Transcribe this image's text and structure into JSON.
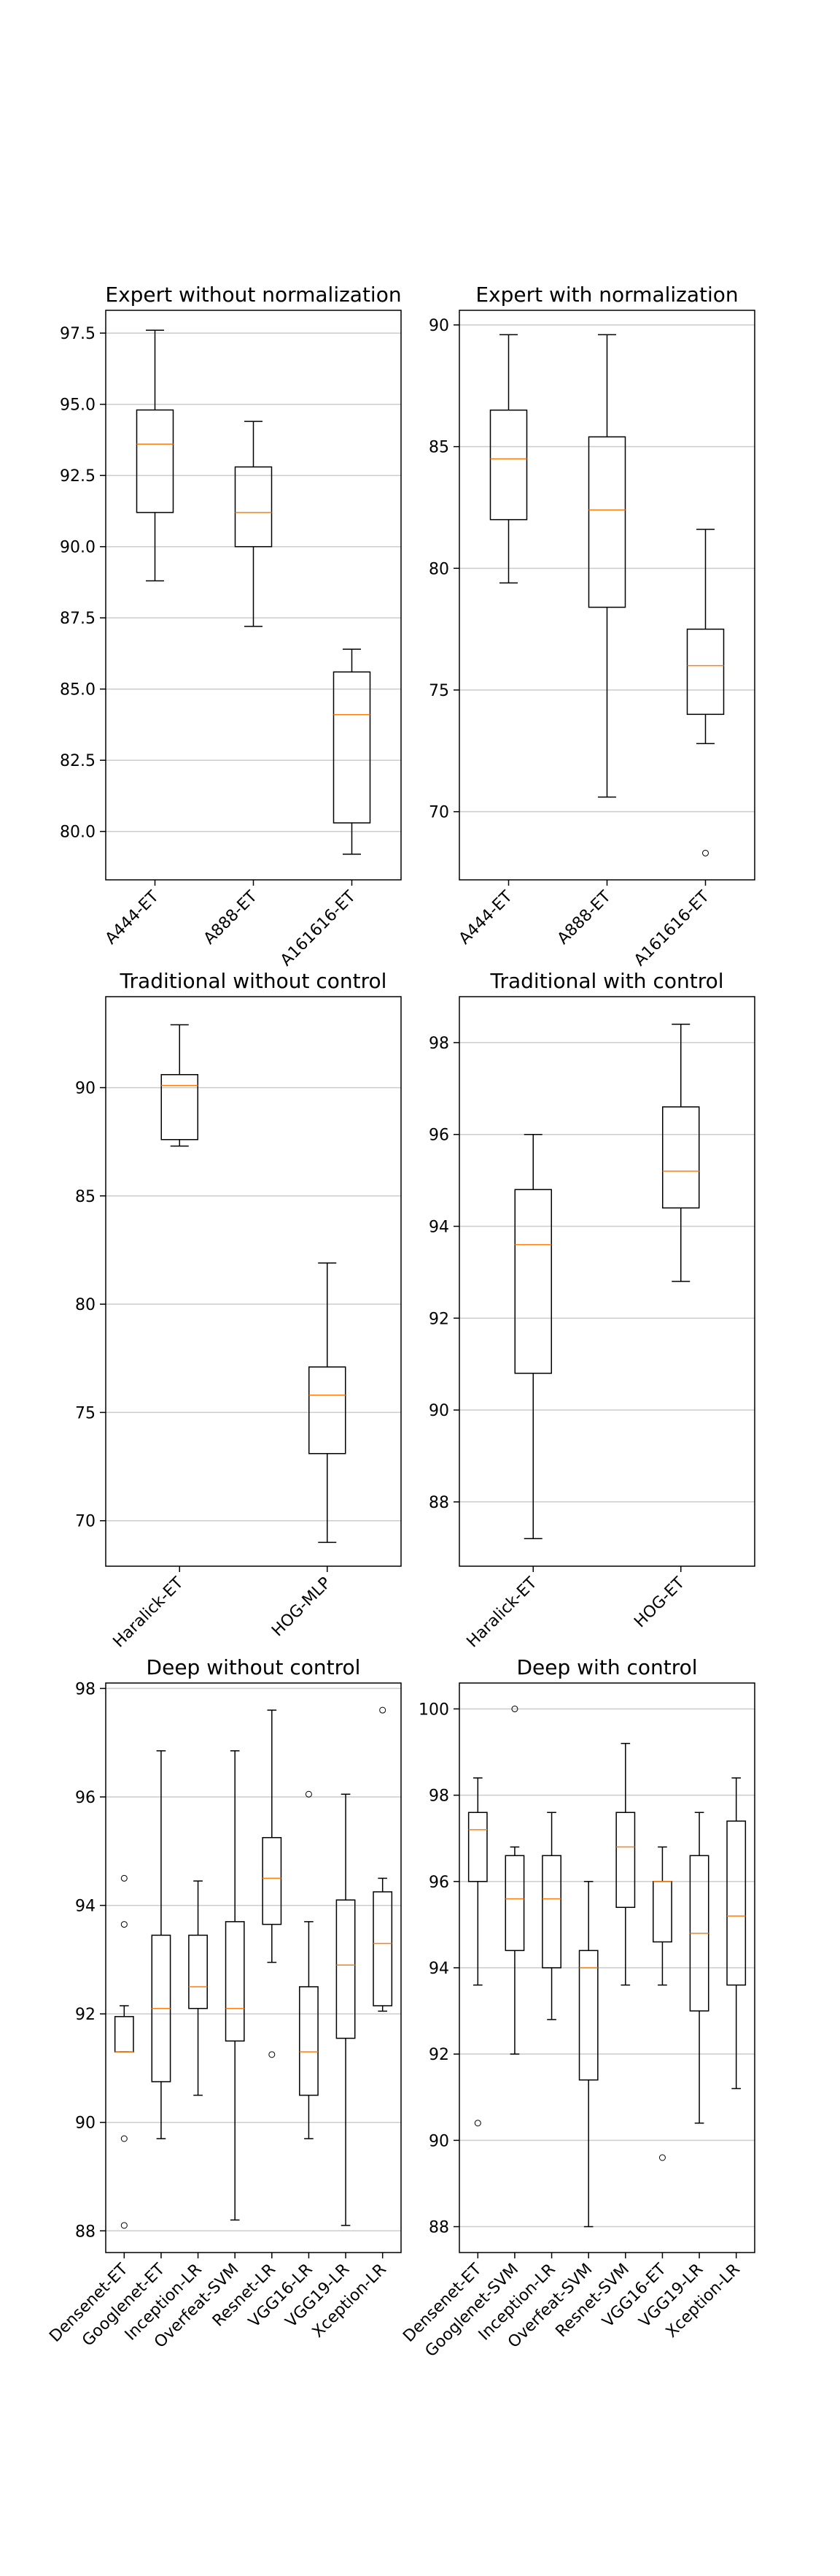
{
  "chart_data": [
    {
      "type": "box",
      "title": "Expert without normalization",
      "categories": [
        "A444-ET",
        "A888-ET",
        "A161616-ET"
      ],
      "ylim": [
        78.3,
        98.3
      ],
      "yticks": [
        "80.0",
        "82.5",
        "85.0",
        "87.5",
        "90.0",
        "92.5",
        "95.0",
        "97.5"
      ],
      "grid": "horizontal",
      "boxes": [
        {
          "whislo": 88.8,
          "q1": 91.2,
          "med": 93.6,
          "q3": 94.8,
          "whishi": 97.6,
          "fliers": []
        },
        {
          "whislo": 87.2,
          "q1": 90.0,
          "med": 91.2,
          "q3": 92.8,
          "whishi": 94.4,
          "fliers": []
        },
        {
          "whislo": 79.2,
          "q1": 80.3,
          "med": 84.1,
          "q3": 85.6,
          "whishi": 86.4,
          "fliers": []
        }
      ]
    },
    {
      "type": "box",
      "title": "Expert with normalization",
      "categories": [
        "A444-ET",
        "A888-ET",
        "A161616-ET"
      ],
      "ylim": [
        67.2,
        90.6
      ],
      "yticks": [
        "70",
        "75",
        "80",
        "85",
        "90"
      ],
      "grid": "horizontal",
      "boxes": [
        {
          "whislo": 79.4,
          "q1": 82.0,
          "med": 84.5,
          "q3": 86.5,
          "whishi": 89.6,
          "fliers": []
        },
        {
          "whislo": 70.6,
          "q1": 78.4,
          "med": 82.4,
          "q3": 85.4,
          "whishi": 89.6,
          "fliers": []
        },
        {
          "whislo": 72.8,
          "q1": 74.0,
          "med": 76.0,
          "q3": 77.5,
          "whishi": 81.6,
          "fliers": [
            68.3
          ]
        }
      ]
    },
    {
      "type": "box",
      "title": "Traditional without control",
      "categories": [
        "Haralick-ET",
        "HOG-MLP"
      ],
      "ylim": [
        67.9,
        94.2
      ],
      "yticks": [
        "70",
        "75",
        "80",
        "85",
        "90"
      ],
      "grid": "horizontal",
      "boxes": [
        {
          "whislo": 87.3,
          "q1": 87.6,
          "med": 90.1,
          "q3": 90.6,
          "whishi": 92.9,
          "fliers": []
        },
        {
          "whislo": 69.0,
          "q1": 73.1,
          "med": 75.8,
          "q3": 77.1,
          "whishi": 81.9,
          "fliers": []
        }
      ]
    },
    {
      "type": "box",
      "title": "Traditional with control",
      "categories": [
        "Haralick-ET",
        "HOG-ET"
      ],
      "ylim": [
        86.6,
        99.0
      ],
      "yticks": [
        "88",
        "90",
        "92",
        "94",
        "96",
        "98"
      ],
      "grid": "horizontal",
      "boxes": [
        {
          "whislo": 87.2,
          "q1": 90.8,
          "med": 93.6,
          "q3": 94.8,
          "whishi": 96.0,
          "fliers": []
        },
        {
          "whislo": 92.8,
          "q1": 94.4,
          "med": 95.2,
          "q3": 96.6,
          "whishi": 98.4,
          "fliers": []
        }
      ]
    },
    {
      "type": "box",
      "title": "Deep without control",
      "categories": [
        "Densenet-ET",
        "Googlenet-ET",
        "Inception-LR",
        "Overfeat-SVM",
        "Resnet-LR",
        "VGG16-LR",
        "VGG19-LR",
        "Xception-LR"
      ],
      "ylim": [
        87.6,
        98.1
      ],
      "yticks": [
        "88",
        "90",
        "92",
        "94",
        "96",
        "98"
      ],
      "grid": "horizontal",
      "boxes": [
        {
          "whislo": 91.3,
          "q1": 91.3,
          "med": 91.3,
          "q3": 91.95,
          "whishi": 92.15,
          "fliers": [
            94.5,
            93.65,
            89.7,
            88.1
          ]
        },
        {
          "whislo": 89.7,
          "q1": 90.75,
          "med": 92.1,
          "q3": 93.45,
          "whishi": 96.85,
          "fliers": []
        },
        {
          "whislo": 90.5,
          "q1": 92.1,
          "med": 92.5,
          "q3": 93.45,
          "whishi": 94.45,
          "fliers": []
        },
        {
          "whislo": 88.2,
          "q1": 91.5,
          "med": 92.1,
          "q3": 93.7,
          "whishi": 96.85,
          "fliers": []
        },
        {
          "whislo": 92.95,
          "q1": 93.65,
          "med": 94.5,
          "q3": 95.25,
          "whishi": 97.6,
          "fliers": [
            91.25
          ]
        },
        {
          "whislo": 89.7,
          "q1": 90.5,
          "med": 91.3,
          "q3": 92.5,
          "whishi": 93.7,
          "fliers": [
            96.05
          ]
        },
        {
          "whislo": 88.1,
          "q1": 91.55,
          "med": 92.9,
          "q3": 94.1,
          "whishi": 96.05,
          "fliers": []
        },
        {
          "whislo": 92.05,
          "q1": 92.15,
          "med": 93.3,
          "q3": 94.25,
          "whishi": 94.5,
          "fliers": [
            97.6
          ]
        }
      ]
    },
    {
      "type": "box",
      "title": "Deep with control",
      "categories": [
        "Densenet-ET",
        "Googlenet-SVM",
        "Inception-LR",
        "Overfeat-SVM",
        "Resnet-SVM",
        "VGG16-ET",
        "VGG19-LR",
        "Xception-LR"
      ],
      "ylim": [
        87.4,
        100.6
      ],
      "yticks": [
        "88",
        "90",
        "92",
        "94",
        "96",
        "98",
        "100"
      ],
      "grid": "horizontal",
      "boxes": [
        {
          "whislo": 93.6,
          "q1": 96.0,
          "med": 97.2,
          "q3": 97.6,
          "whishi": 98.4,
          "fliers": [
            90.4
          ]
        },
        {
          "whislo": 92.0,
          "q1": 94.4,
          "med": 95.6,
          "q3": 96.6,
          "whishi": 96.8,
          "fliers": [
            100.0
          ]
        },
        {
          "whislo": 92.8,
          "q1": 94.0,
          "med": 95.6,
          "q3": 96.6,
          "whishi": 97.6,
          "fliers": []
        },
        {
          "whislo": 88.0,
          "q1": 91.4,
          "med": 94.0,
          "q3": 94.4,
          "whishi": 96.0,
          "fliers": []
        },
        {
          "whislo": 93.6,
          "q1": 95.4,
          "med": 96.8,
          "q3": 97.6,
          "whishi": 99.2,
          "fliers": []
        },
        {
          "whislo": 93.6,
          "q1": 94.6,
          "med": 96.0,
          "q3": 96.0,
          "whishi": 96.8,
          "fliers": [
            89.6
          ]
        },
        {
          "whislo": 90.4,
          "q1": 93.0,
          "med": 94.8,
          "q3": 96.6,
          "whishi": 97.6,
          "fliers": []
        },
        {
          "whislo": 91.2,
          "q1": 93.6,
          "med": 95.2,
          "q3": 97.4,
          "whishi": 98.4,
          "fliers": []
        }
      ]
    }
  ],
  "colors": {
    "box": "#000000",
    "median": "#ff7f0e",
    "grid": "#cccccc",
    "background": "#ffffff"
  }
}
